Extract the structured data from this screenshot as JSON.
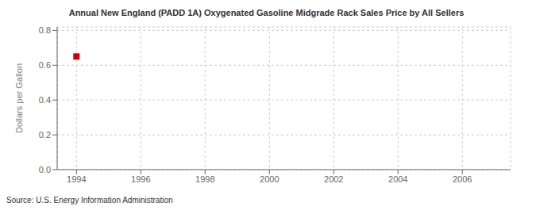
{
  "chart_data": {
    "type": "scatter",
    "title": "Annual New England (PADD 1A) Oxygenated Gasoline Midgrade Rack Sales Price by All Sellers",
    "ylabel": "Dollars per Gallon",
    "source": "Source: U.S. Energy Information Administration",
    "x": [
      1994
    ],
    "values": [
      0.65
    ],
    "color": "#cc0000",
    "marker": "square",
    "xlim": [
      1993.4,
      2007.5
    ],
    "ylim": [
      0.0,
      0.82
    ],
    "xticks": [
      1994,
      1996,
      1998,
      2000,
      2002,
      2004,
      2006
    ],
    "yticks": [
      {
        "value": 0.0,
        "label": "0.0"
      },
      0.2,
      0.4,
      0.6,
      0.8
    ],
    "grid": true
  }
}
